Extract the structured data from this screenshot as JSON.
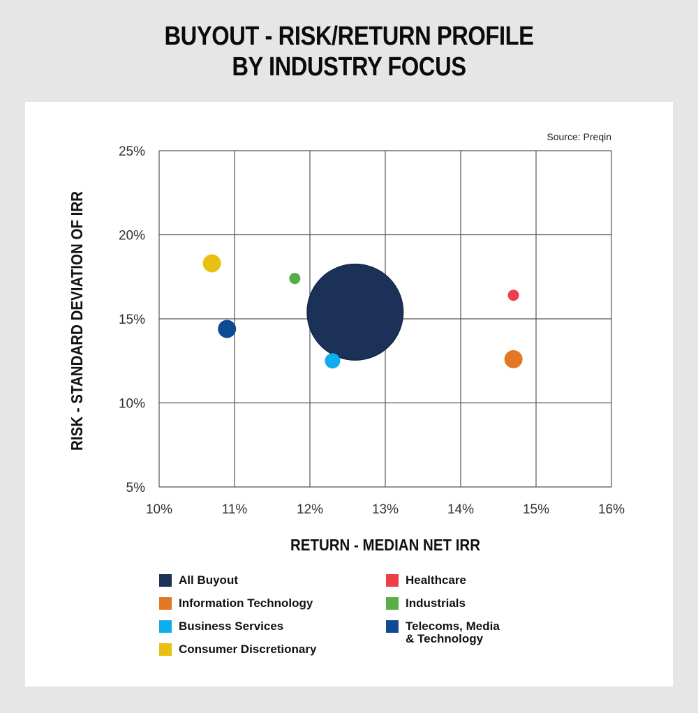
{
  "title_lines": [
    "BUYOUT - RISK/RETURN PROFILE",
    "BY INDUSTRY FOCUS"
  ],
  "source": "Source: Preqin",
  "chart_data": {
    "type": "scatter",
    "subtype": "bubble",
    "xlabel": "RETURN - MEDIAN NET IRR",
    "ylabel": "RISK - STANDARD DEVIATION OF IRR",
    "xlim": [
      10,
      16
    ],
    "ylim": [
      5,
      25
    ],
    "x_ticks": [
      "10%",
      "11%",
      "12%",
      "13%",
      "14%",
      "15%",
      "16%"
    ],
    "y_ticks": [
      "5%",
      "10%",
      "15%",
      "20%",
      "25%"
    ],
    "grid": true,
    "legend_position": "bottom",
    "series": [
      {
        "name": "All Buyout",
        "color": "#1b3157",
        "x": 12.6,
        "y": 15.4,
        "size": 69
      },
      {
        "name": "Information Technology",
        "color": "#e27726",
        "x": 14.7,
        "y": 12.6,
        "size": 13
      },
      {
        "name": "Business Services",
        "color": "#0eaeec",
        "x": 12.3,
        "y": 12.5,
        "size": 11
      },
      {
        "name": "Consumer Discretionary",
        "color": "#e9c011",
        "x": 10.7,
        "y": 18.3,
        "size": 13
      },
      {
        "name": "Healthcare",
        "color": "#ec4049",
        "x": 14.7,
        "y": 16.4,
        "size": 8
      },
      {
        "name": "Industrials",
        "color": "#58ad46",
        "x": 11.8,
        "y": 17.4,
        "size": 8
      },
      {
        "name": "Telecoms, Media\n& Technology",
        "color": "#0e4b93",
        "x": 10.9,
        "y": 14.4,
        "size": 13
      }
    ]
  }
}
